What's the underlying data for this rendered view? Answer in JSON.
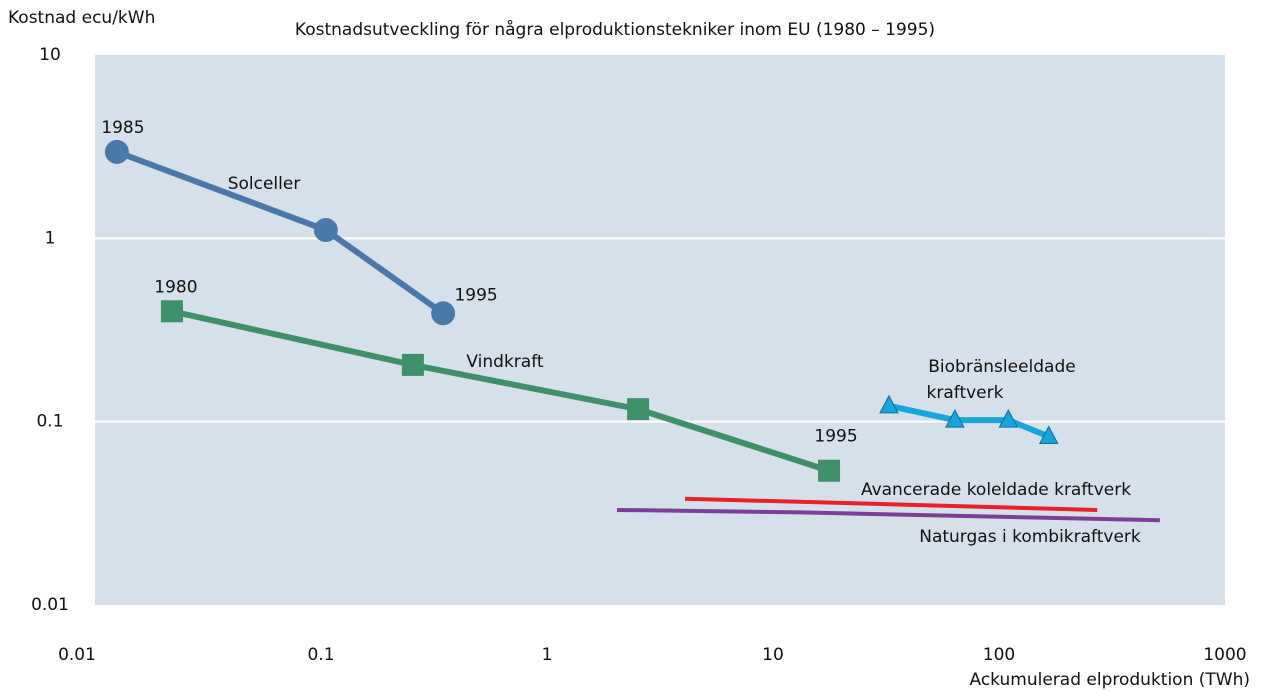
{
  "chart_data": {
    "type": "line",
    "title": "Kostnadsutveckling för några elproduktionstekniker inom EU (1980 – 1995)",
    "y_label": "Kostnad ecu/kWh",
    "x_label": "Ackumulerad elproduktion (TWh)",
    "xlog": true,
    "ylog": true,
    "xlim": [
      0.01,
      1000
    ],
    "ylim": [
      0.01,
      10
    ],
    "xticks": [
      0.01,
      0.1,
      1,
      10,
      100,
      1000
    ],
    "yticks": [
      0.01,
      0.1,
      1,
      10
    ],
    "grid": true,
    "series": [
      {
        "name": "Solceller",
        "color": "#4a78a8",
        "marker": "circle",
        "x": [
          0.0125,
          0.105,
          0.347
        ],
        "values": [
          2.96,
          1.11,
          0.39
        ]
      },
      {
        "name": "Vindkraft",
        "color": "#3e8f6a",
        "marker": "square",
        "x": [
          0.0219,
          0.255,
          2.53,
          17.7
        ],
        "values": [
          0.4,
          0.204,
          0.117,
          0.054
        ]
      },
      {
        "name": "Biobränsleeldade kraftverk",
        "color": "#1aa4dc",
        "marker": "triangle",
        "x": [
          32.6,
          63.8,
          110,
          166
        ],
        "values": [
          0.122,
          0.102,
          0.102,
          0.083
        ]
      },
      {
        "name": "Avancerade koleldade kraftverk",
        "color": "#e8202a",
        "marker": "none",
        "x": [
          4.08,
          272
        ],
        "values": [
          0.038,
          0.033
        ]
      },
      {
        "name": "Naturgas i kombikraftverk",
        "color": "#7b3f98",
        "marker": "none",
        "x": [
          2.04,
          13.2,
          515
        ],
        "values": [
          0.033,
          0.032,
          0.029
        ]
      }
    ],
    "annotations": [
      {
        "text": "1985",
        "series": 0,
        "point": 0
      },
      {
        "text": "1995",
        "series": 0,
        "point": 2
      },
      {
        "text": "1980",
        "series": 1,
        "point": 0
      },
      {
        "text": "1995",
        "series": 1,
        "point": 3
      }
    ]
  }
}
